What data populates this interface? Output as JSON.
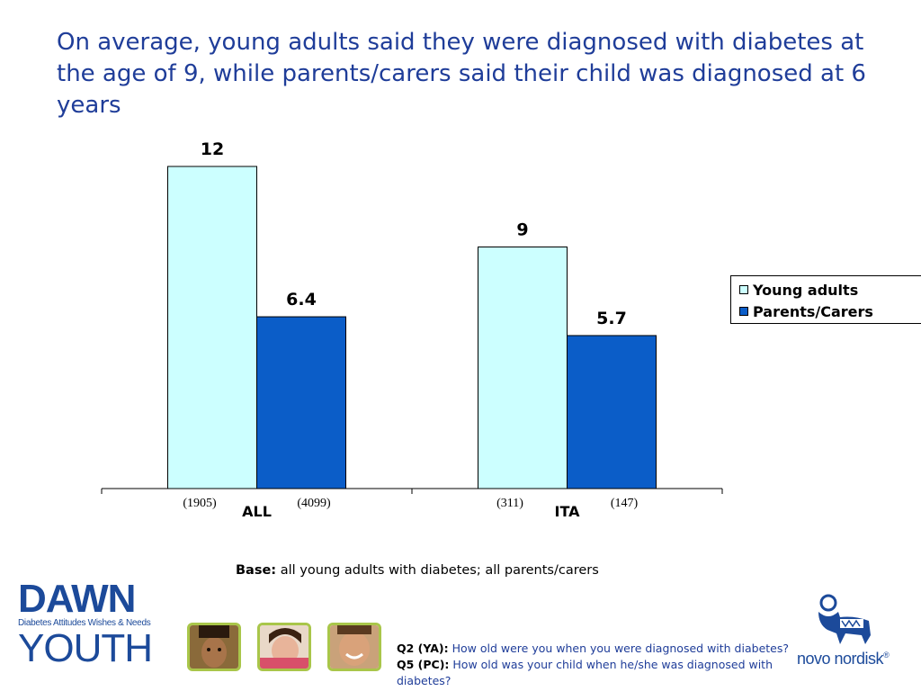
{
  "title": "On average, young adults said they were diagnosed with diabetes at the age of 9, while parents/carers said their child was diagnosed at 6 years",
  "chart_data": {
    "type": "bar",
    "categories": [
      "ALL",
      "ITA"
    ],
    "series": [
      {
        "name": "Young adults",
        "values": [
          12,
          9
        ],
        "color": "#ccffff",
        "bases": [
          "(1905)",
          "(311)"
        ]
      },
      {
        "name": "Parents/Carers",
        "values": [
          6.4,
          5.7
        ],
        "color": "#0b5dc8",
        "bases": [
          "(4099)",
          "(147)"
        ]
      }
    ],
    "value_labels": [
      [
        "12",
        "9"
      ],
      [
        "6.4",
        "5.7"
      ]
    ],
    "ylim": [
      0,
      12
    ],
    "grid": false,
    "legend_position": "right"
  },
  "legend": {
    "items": [
      {
        "label": "Young adults"
      },
      {
        "label": "Parents/Carers"
      }
    ]
  },
  "base_note": {
    "label": "Base:",
    "text": " all young adults with diabetes; all parents/carers"
  },
  "question": {
    "q2_label": "Q2 (YA):",
    "q2_text": " How old were you when you were diagnosed with diabetes?",
    "q5_label": " Q5 (PC):",
    "q5_text": " How old was your child when he/she was diagnosed with diabetes?"
  },
  "logos": {
    "dawn_top": "DAWN",
    "dawn_sub": "Diabetes Attitudes Wishes & Needs",
    "dawn_bottom": "YOUTH",
    "novo": "novo nordisk",
    "registered": "®"
  },
  "colors": {
    "title": "#1f3d99",
    "accent_green": "#a9c64a",
    "brand_blue": "#1c4a9a"
  }
}
